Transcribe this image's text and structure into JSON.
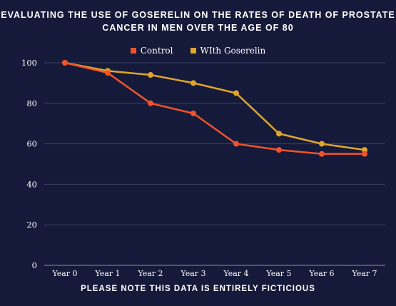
{
  "chart_data": {
    "type": "line",
    "title_line1": "EVALUATING THE USE OF GOSERELIN ON THE RATES OF DEATH OF PROSTATE",
    "title_line2": "CANCER IN MEN OVER THE AGE OF 80",
    "footer": "PLEASE NOTE THIS DATA IS ENTIRELY FICTICIOUS",
    "categories": [
      "Year 0",
      "Year 1",
      "Year 2",
      "Year 3",
      "Year 4",
      "Year 5",
      "Year 6",
      "Year 7"
    ],
    "y_ticks": [
      0,
      20,
      40,
      60,
      80,
      100
    ],
    "ylim": [
      0,
      100
    ],
    "grid": true,
    "legend_placement": "top-center",
    "series": [
      {
        "name": "Control",
        "color": "#f0532b",
        "values": [
          100,
          95,
          80,
          75,
          60,
          57,
          55,
          55
        ]
      },
      {
        "name": "WIth Goserelin",
        "color": "#e0a52d",
        "values": [
          100,
          96,
          94,
          90,
          85,
          65,
          60,
          57
        ]
      }
    ]
  },
  "colors": {
    "background": "#161a3a",
    "grid": "#3a3f66",
    "text": "#ffffff"
  }
}
